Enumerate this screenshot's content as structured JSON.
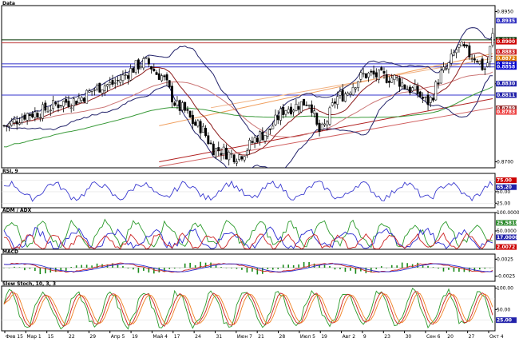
{
  "chart_data": [
    {
      "type": "candlestick",
      "title": "Data",
      "yticks": [
        "0.8950",
        "0.8830",
        "0.8700"
      ],
      "price_tags": [
        {
          "label": "0.8935",
          "color": "#3030c0"
        },
        {
          "label": "0.8903",
          "color": "#003300"
        },
        {
          "label": "0.8900",
          "color": "#cc0000"
        },
        {
          "label": "0.8883",
          "color": "#cc2222"
        },
        {
          "label": "0.8872",
          "color": "#dd7700"
        },
        {
          "label": "0.8863",
          "color": "#0000cc"
        },
        {
          "label": "0.8858",
          "color": "#0000cc"
        },
        {
          "label": "0.8830",
          "color": "#2222aa"
        },
        {
          "label": "0.8811",
          "color": "#2222aa"
        },
        {
          "label": "0.8789",
          "color": "#993333"
        },
        {
          "label": "0.8783",
          "color": "#ee4444"
        }
      ],
      "x_dates": [
        "Фев 15",
        "Мар 1",
        "15",
        "22",
        "29",
        "Апр 5",
        "19",
        "Май 4",
        "17",
        "24",
        "31",
        "Июн 7",
        "21",
        "28",
        "Июл 5",
        "19",
        "Авг 2",
        "9",
        "23",
        "30",
        "Сен 6",
        "20",
        "27",
        "Окт 4"
      ],
      "y_range": [
        0.869,
        0.896
      ],
      "horizontal_lines": [
        0.8903,
        0.8863,
        0.8858,
        0.8811
      ],
      "colors": {
        "candle_up": "#ffffff",
        "candle_down": "#000000",
        "bollinger": "#22226a",
        "ma_short": "#8b1a1a",
        "ma_mid": "#cc7777",
        "ma_long": "#3a9a3a",
        "trend_red": "#b02020",
        "trend_orange": "#f0a060"
      }
    },
    {
      "type": "line",
      "title": "RSI, 9",
      "yticks": [
        "50.00",
        "25.00"
      ],
      "price_tags": [
        {
          "label": "75.00",
          "color": "#cc0000"
        },
        {
          "label": "65.20",
          "color": "#2222aa"
        }
      ],
      "y_range": [
        15,
        90
      ],
      "series": [
        {
          "name": "",
          "color": "#3a3ad0"
        }
      ]
    },
    {
      "type": "line",
      "title": "ADM / ADX",
      "yticks": [
        "100.0000",
        "50.0000"
      ],
      "price_tags": [
        {
          "label": "25.5818",
          "color": "#2a8a2a"
        },
        {
          "label": "17.0000",
          "color": "#2222aa"
        },
        {
          "label": "2.0072",
          "color": "#cc0000"
        }
      ],
      "y_range": [
        0,
        100
      ],
      "series": [
        {
          "name": "",
          "color": "#2a9a2a"
        },
        {
          "name": "",
          "color": "#2a2ad0"
        },
        {
          "name": "",
          "color": "#cc2222"
        }
      ]
    },
    {
      "type": "bar+line",
      "title": "MACD",
      "yticks": [
        "0.0025",
        "-0.0025"
      ],
      "y_range": [
        -0.004,
        0.004
      ],
      "series": [
        {
          "name": "",
          "color": "#cc2222"
        },
        {
          "name": "",
          "color": "#2a2ad0"
        },
        {
          "name": "",
          "color": "#1a8a1a"
        }
      ]
    },
    {
      "type": "line",
      "title": "Slow Stoch, 10, 3, 3",
      "yticks": [
        "100.00",
        "50.00"
      ],
      "price_tags": [
        {
          "label": "25.00",
          "color": "#2222aa"
        }
      ],
      "y_range": [
        0,
        105
      ],
      "series": [
        {
          "name": "",
          "color": "#2a9a2a"
        },
        {
          "name": "",
          "color": "#cc2222"
        },
        {
          "name": "",
          "color": "#f08020"
        }
      ]
    }
  ]
}
